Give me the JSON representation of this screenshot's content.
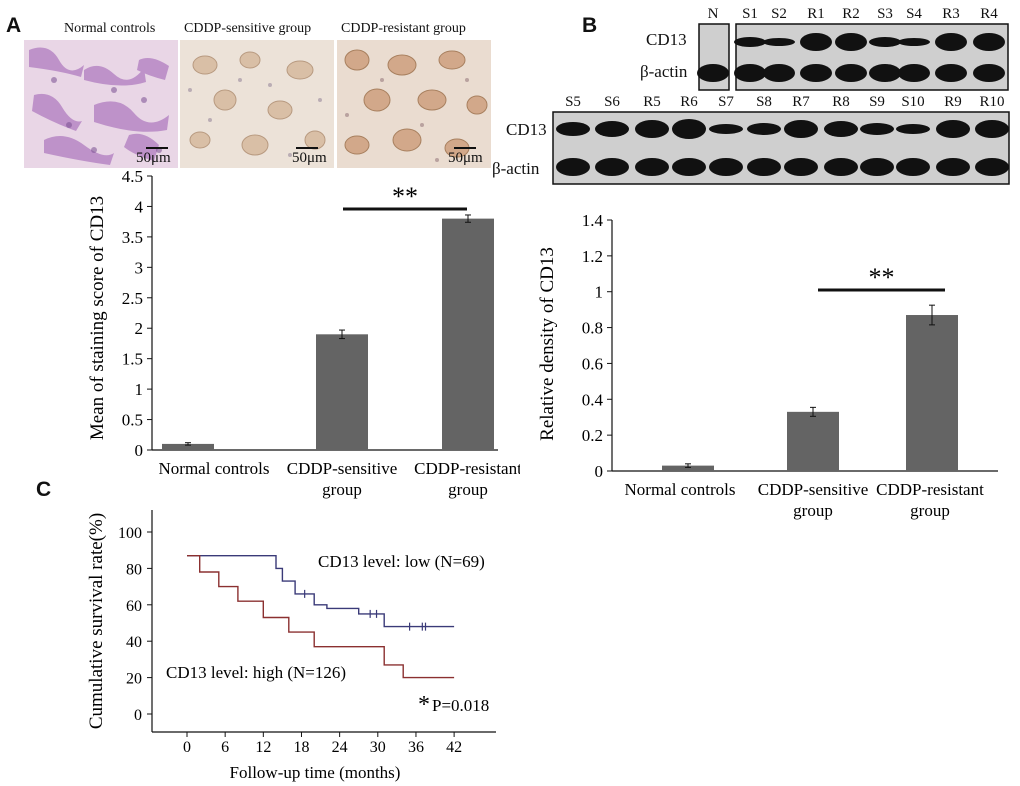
{
  "panels": {
    "a": "A",
    "b": "B",
    "c": "C"
  },
  "histology": {
    "labels": [
      "Normal controls",
      "CDDP-sensitive group",
      "CDDP-resistant group"
    ],
    "scale_bar": "50μm"
  },
  "western": {
    "row1_lanes": [
      "N",
      "S1",
      "S2",
      "R1",
      "R2",
      "S3",
      "S4",
      "R3",
      "R4"
    ],
    "row2_lanes": [
      "S5",
      "S6",
      "R5",
      "R6",
      "S7",
      "S8",
      "R7",
      "R8",
      "S9",
      "S10",
      "R9",
      "R10"
    ],
    "band_target": "CD13",
    "band_control": "β-actin"
  },
  "chart_data": [
    {
      "type": "bar",
      "panel": "A",
      "categories": [
        "Normal controls",
        "CDDP-sensitive group",
        "CDDP-resistant group"
      ],
      "values": [
        0.1,
        1.9,
        3.8
      ],
      "errors": [
        0.02,
        0.07,
        0.06
      ],
      "ylabel": "Mean of staining  score of CD13",
      "ylim": [
        0,
        4.5
      ],
      "yticks": [
        "0",
        "0.5",
        "1",
        "1.5",
        "2",
        "2.5",
        "3",
        "3.5",
        "4",
        "4.5"
      ],
      "significance": "**",
      "bar_color": "#646464"
    },
    {
      "type": "bar",
      "panel": "B",
      "categories": [
        "Normal controls",
        "CDDP-sensitive group",
        "CDDP-resistant group"
      ],
      "values": [
        0.03,
        0.33,
        0.87
      ],
      "errors": [
        0.01,
        0.025,
        0.055
      ],
      "ylabel": "Relative density of CD13",
      "ylim": [
        0,
        1.4
      ],
      "yticks": [
        "0",
        "0.2",
        "0.4",
        "0.6",
        "0.8",
        "1",
        "1.2",
        "1.4"
      ],
      "significance": "**",
      "bar_color": "#646464"
    },
    {
      "type": "line",
      "panel": "C",
      "xlabel": "Follow-up time (months)",
      "ylabel": "Cumulative survival rate(%)",
      "xlim": [
        -4,
        43
      ],
      "ylim": [
        0,
        100
      ],
      "xticks": [
        "0",
        "6",
        "12",
        "18",
        "24",
        "30",
        "36",
        "42"
      ],
      "yticks": [
        "0",
        "20",
        "40",
        "60",
        "80",
        "100"
      ],
      "series": [
        {
          "name": "CD13 level: low (N=69)",
          "color": "#3a3a78",
          "steps": [
            [
              0,
              87
            ],
            [
              14,
              87
            ],
            [
              14,
              80
            ],
            [
              15,
              80
            ],
            [
              15,
              73
            ],
            [
              17,
              73
            ],
            [
              17,
              66
            ],
            [
              20,
              66
            ],
            [
              20,
              60
            ],
            [
              22,
              60
            ],
            [
              22,
              58
            ],
            [
              27,
              58
            ],
            [
              27,
              55
            ],
            [
              31,
              55
            ],
            [
              31,
              48
            ],
            [
              42,
              48
            ]
          ],
          "censored": [
            [
              18.5,
              66
            ],
            [
              28.8,
              55
            ],
            [
              29.8,
              55
            ],
            [
              35,
              48
            ],
            [
              37,
              48
            ],
            [
              37.5,
              48
            ]
          ]
        },
        {
          "name": "CD13 level: high (N=126)",
          "color": "#8b3030",
          "steps": [
            [
              0,
              87
            ],
            [
              2,
              87
            ],
            [
              2,
              78
            ],
            [
              5,
              78
            ],
            [
              5,
              70
            ],
            [
              8,
              70
            ],
            [
              8,
              62
            ],
            [
              12,
              62
            ],
            [
              12,
              53
            ],
            [
              16,
              53
            ],
            [
              16,
              45
            ],
            [
              20,
              45
            ],
            [
              20,
              37
            ],
            [
              31,
              37
            ],
            [
              31,
              27
            ],
            [
              34,
              27
            ],
            [
              34,
              20
            ],
            [
              42,
              20
            ]
          ],
          "censored": []
        }
      ],
      "annotation": "P=0.018",
      "annotation_star": "*"
    }
  ]
}
